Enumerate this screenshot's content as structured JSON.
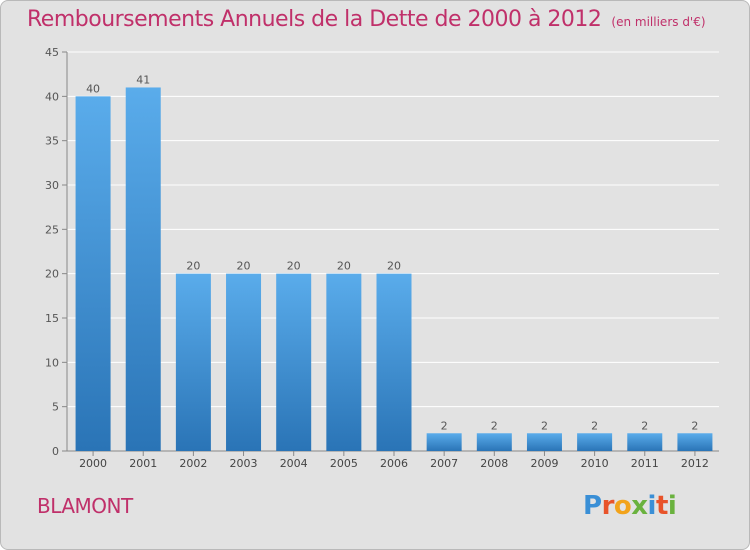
{
  "header": {
    "title": "Remboursements Annuels de la Dette de 2000 à 2012",
    "subtitle": "(en milliers d'€)"
  },
  "footer": {
    "commune": "BLAMONT",
    "logo_text": "Proxiti"
  },
  "colors": {
    "title": "#c0306a",
    "bar_top": "#5aaceb",
    "bar_bottom": "#2a74b6",
    "background": "#e2e2e2",
    "grid": "#ffffff"
  },
  "chart_data": {
    "type": "bar",
    "categories": [
      "2000",
      "2001",
      "2002",
      "2003",
      "2004",
      "2005",
      "2006",
      "2007",
      "2008",
      "2009",
      "2010",
      "2011",
      "2012"
    ],
    "values": [
      40,
      41,
      20,
      20,
      20,
      20,
      20,
      2,
      2,
      2,
      2,
      2,
      2
    ],
    "data_labels": [
      "40",
      "41",
      "20",
      "20",
      "20",
      "20",
      "20",
      "2",
      "2",
      "2",
      "2",
      "2",
      "2"
    ],
    "title": "Remboursements Annuels de la Dette de 2000 à 2012",
    "xlabel": "",
    "ylabel": "",
    "ylim": [
      0,
      45
    ],
    "yticks": [
      0,
      5,
      10,
      15,
      20,
      25,
      30,
      35,
      40,
      45
    ],
    "grid": true,
    "legend": "none"
  }
}
